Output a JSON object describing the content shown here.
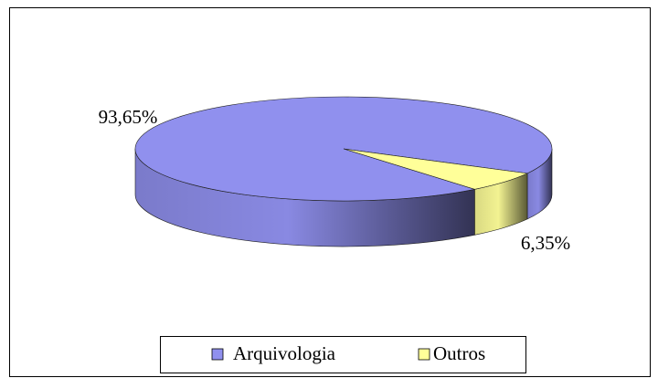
{
  "chart_data": {
    "type": "pie",
    "categories": [
      "Arquivologia",
      "Outros"
    ],
    "values": [
      93.65,
      6.35
    ],
    "value_labels": [
      "93,65%",
      "6,35%"
    ],
    "colors": [
      "#9090ee",
      "#ffff99"
    ],
    "legend": "bottom"
  }
}
